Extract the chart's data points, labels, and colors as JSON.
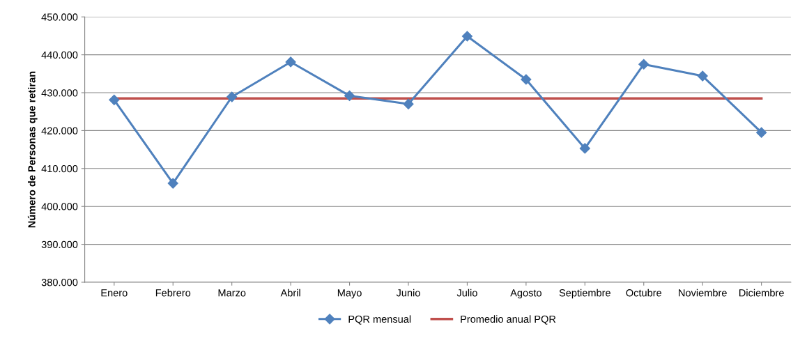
{
  "chart_data": {
    "type": "line",
    "ylabel": "Número de Personas que retiran",
    "categories": [
      "Enero",
      "Febrero",
      "Marzo",
      "Abril",
      "Mayo",
      "Junio",
      "Julio",
      "Agosto",
      "Septiembre",
      "Octubre",
      "Noviembre",
      "Diciembre"
    ],
    "series": [
      {
        "name": "PQR mensual",
        "color": "#4f81bd",
        "marker": "diamond",
        "values": [
          428100,
          406100,
          428900,
          438100,
          429200,
          427000,
          444900,
          433500,
          415300,
          437500,
          434400,
          419500
        ]
      },
      {
        "name": "Promedio anual PQR",
        "color": "#c0504d",
        "marker": "none",
        "values": [
          428500,
          428500,
          428500,
          428500,
          428500,
          428500,
          428500,
          428500,
          428500,
          428500,
          428500,
          428500
        ]
      }
    ],
    "ylim": [
      380000,
      450000
    ],
    "yticks": [
      {
        "value": 380000,
        "label": "380.000"
      },
      {
        "value": 390000,
        "label": "390.000"
      },
      {
        "value": 400000,
        "label": "400.000"
      },
      {
        "value": 410000,
        "label": "410.000"
      },
      {
        "value": 420000,
        "label": "420.000"
      },
      {
        "value": 430000,
        "label": "430.000"
      },
      {
        "value": 440000,
        "label": "440.000"
      },
      {
        "value": 450000,
        "label": "450.000"
      }
    ],
    "grid": "y",
    "legend": "bottom"
  }
}
